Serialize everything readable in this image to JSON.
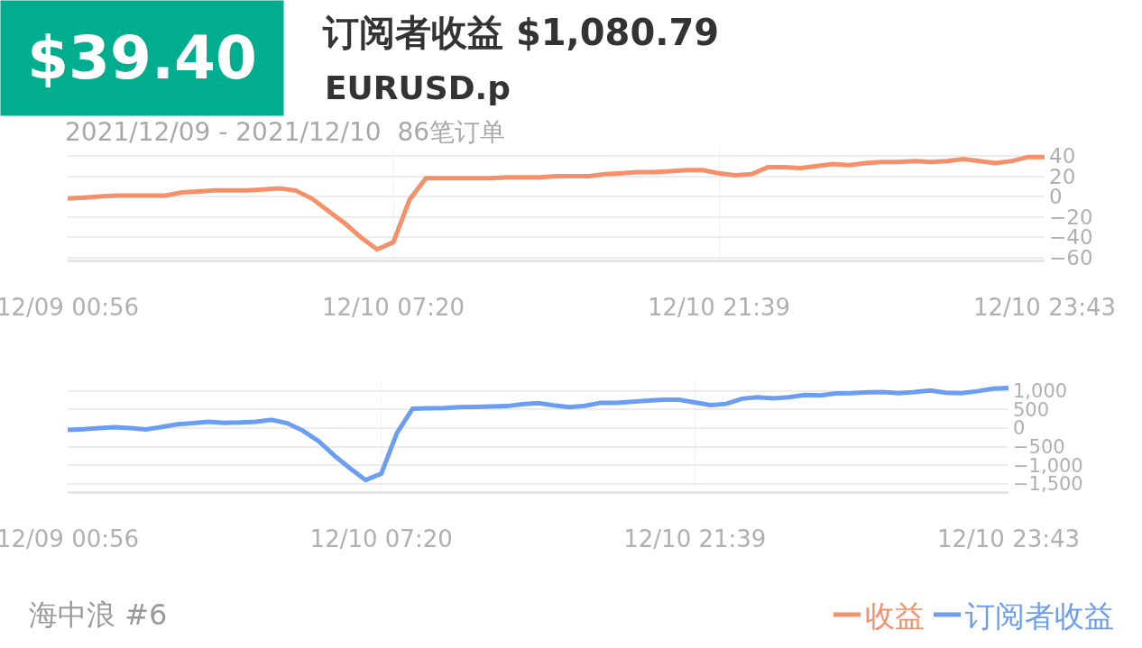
{
  "chart_data": [
    {
      "type": "line",
      "title": "订阅者收益 $1,080.79",
      "subtitle": "EURUSD.p",
      "annotations": [
        "$39.40",
        "2021/12/09 - 2021/12/10  86笔订单",
        "海中浪 #6"
      ],
      "categories": [
        "12/09 00:56",
        null,
        null,
        null,
        null,
        null,
        null,
        null,
        null,
        null,
        null,
        null,
        null,
        null,
        null,
        null,
        null,
        null,
        null,
        null,
        "12/10 07:20",
        null,
        null,
        null,
        null,
        null,
        null,
        null,
        null,
        null,
        null,
        null,
        null,
        null,
        null,
        null,
        null,
        null,
        null,
        null,
        "12/10 21:39",
        null,
        null,
        null,
        null,
        null,
        null,
        null,
        null,
        null,
        null,
        null,
        null,
        null,
        null,
        null,
        null,
        null,
        null,
        null,
        "12/10 23:43"
      ],
      "series": [
        {
          "name": "收益",
          "color": "#f5906a",
          "values": [
            -2,
            -1,
            0,
            1,
            1,
            1,
            1,
            4,
            5,
            6,
            6,
            6,
            7,
            8,
            6,
            -2,
            -14,
            -26,
            -40,
            -52,
            -45,
            -3,
            18,
            18,
            18,
            18,
            18,
            19,
            19,
            19,
            20,
            20,
            20,
            22,
            23,
            24,
            24,
            25,
            26,
            26,
            23,
            21,
            22,
            29,
            29,
            28,
            30,
            32,
            31,
            33,
            34,
            34,
            35,
            34,
            35,
            37,
            35,
            33,
            35,
            39,
            39
          ]
        }
      ],
      "ylim": [
        -62,
        48
      ],
      "yticks": [
        {
          "value": -60,
          "label": "−60"
        },
        {
          "value": -40,
          "label": "−40"
        },
        {
          "value": -20,
          "label": "−20"
        },
        0,
        20,
        40
      ],
      "grid": true,
      "legend": "bottom right"
    },
    {
      "type": "line",
      "categories": [
        "12/09 00:56",
        null,
        null,
        null,
        null,
        null,
        null,
        null,
        null,
        null,
        null,
        null,
        null,
        null,
        null,
        null,
        null,
        null,
        null,
        null,
        "12/10 07:20",
        null,
        null,
        null,
        null,
        null,
        null,
        null,
        null,
        null,
        null,
        null,
        null,
        null,
        null,
        null,
        null,
        null,
        null,
        null,
        "12/10 21:39",
        null,
        null,
        null,
        null,
        null,
        null,
        null,
        null,
        null,
        null,
        null,
        null,
        null,
        null,
        null,
        null,
        null,
        null,
        null,
        "12/10 23:43"
      ],
      "series": [
        {
          "name": "订阅者收益",
          "color": "#6b9ef2",
          "values": [
            -50,
            -30,
            0,
            20,
            0,
            -40,
            30,
            100,
            130,
            170,
            140,
            150,
            170,
            220,
            130,
            -70,
            -350,
            -740,
            -1080,
            -1400,
            -1230,
            -130,
            520,
            530,
            540,
            560,
            570,
            580,
            590,
            640,
            670,
            610,
            560,
            600,
            680,
            680,
            710,
            740,
            760,
            760,
            690,
            620,
            650,
            790,
            830,
            800,
            830,
            890,
            880,
            930,
            940,
            960,
            970,
            940,
            970,
            1010,
            950,
            940,
            990,
            1060,
            1080
          ]
        }
      ],
      "ylim": [
        -1700,
        1260
      ],
      "yticks": [
        {
          "value": -1500,
          "label": "−1,500"
        },
        {
          "value": -1000,
          "label": "−1,000"
        },
        {
          "value": -500,
          "label": "−500"
        },
        0,
        500,
        {
          "value": 1000,
          "label": "1,000"
        }
      ],
      "grid": true,
      "legend": "bottom right"
    }
  ]
}
